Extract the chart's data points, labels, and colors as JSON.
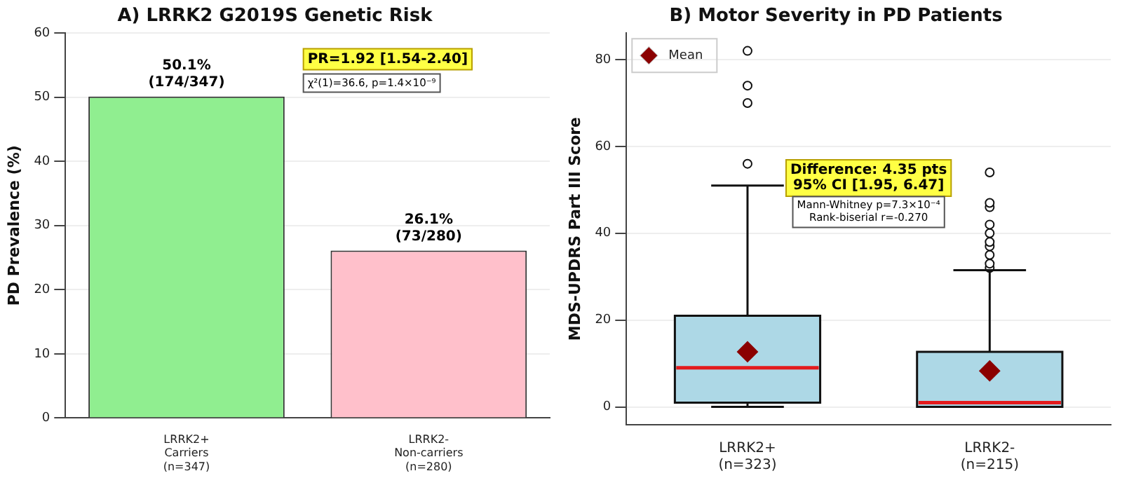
{
  "chart_data": [
    {
      "type": "bar",
      "title": "A) LRRK2 G2019S Genetic Risk",
      "ylabel": "PD Prevalence (%)",
      "categories": [
        "LRRK2+\nCarriers\n(n=347)",
        "LRRK2-\nNon-carriers\n(n=280)"
      ],
      "values": [
        50.1,
        26.1
      ],
      "colors": [
        "#90ee90",
        "#ffc0cb"
      ],
      "value_labels": [
        "50.1%\n(174/347)",
        "26.1%\n(73/280)"
      ],
      "ylim": [
        0,
        60
      ],
      "yticks": [
        0,
        10,
        20,
        30,
        40,
        50,
        60
      ],
      "grid": "y",
      "annotations": [
        "PR=1.92 [1.54-2.40]",
        "χ²(1)=36.6, p=1.4×10⁻⁹"
      ]
    },
    {
      "type": "box",
      "title": "B) Motor Severity in PD Patients",
      "ylabel": "MDS-UPDRS Part III Score",
      "categories": [
        "LRRK2+\n(n=323)",
        "LRRK2-\n(n=215)"
      ],
      "series": [
        {
          "type": "box",
          "color": "#add8e6",
          "boxes": [
            {
              "low": 0,
              "q1": 1,
              "median": 9,
              "q3": 21,
              "high": 51,
              "outliers": [
                56,
                70,
                74,
                82
              ]
            },
            {
              "low": 0,
              "q1": 0,
              "median": 1,
              "q3": 12.7,
              "high": 31.5,
              "outliers": [
                32,
                33,
                35,
                37,
                38,
                40,
                42,
                46,
                47,
                54
              ]
            }
          ]
        },
        {
          "type": "scatter",
          "name": "Mean",
          "color": "#8b0000",
          "marker": "diamond",
          "x": [
            "LRRK2+\n(n=323)",
            "LRRK2-\n(n=215)"
          ],
          "values": [
            12.7,
            8.3
          ]
        }
      ],
      "ylim": [
        -4.1,
        86.1
      ],
      "yticks": [
        0,
        20,
        40,
        60,
        80
      ],
      "grid": "y",
      "legend": "top left",
      "annotations": [
        "Difference: 4.35 pts\n95% CI [1.95, 6.47]",
        "Mann-Whitney p=7.3×10⁻⁴\nRank-biserial r=-0.270"
      ]
    }
  ]
}
